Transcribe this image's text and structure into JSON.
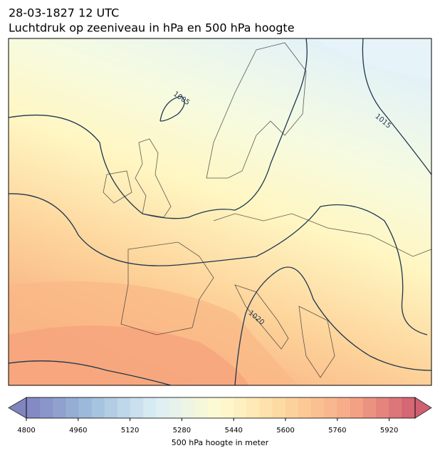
{
  "title": [
    "28-03-1827 12 UTC",
    "Luchtdruk op zeeniveau in hPa en 500 hPa hoogte"
  ],
  "contour_labels": [
    "1005",
    "1015",
    "1020"
  ],
  "colorbar": {
    "label": "500 hPa hoogte in meter",
    "lim": [
      4800,
      6000
    ],
    "ticks": [
      4800,
      4960,
      5120,
      5280,
      5440,
      5600,
      5760,
      5920
    ],
    "colors": [
      "#6a6fb5",
      "#8fb3d6",
      "#d6ecf4",
      "#fffac8",
      "#fdcf8c",
      "#f59a72",
      "#c8445a"
    ]
  }
}
